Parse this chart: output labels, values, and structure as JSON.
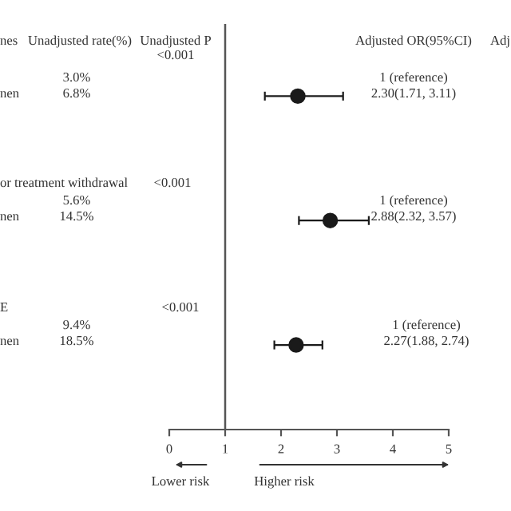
{
  "chart_data": {
    "type": "scatter",
    "orientation": "horizontal",
    "categories": [
      null,
      null,
      null
    ],
    "values": [
      2.3,
      2.88,
      2.27
    ],
    "errors": [
      [
        1.71,
        3.11
      ],
      [
        2.32,
        3.57
      ],
      [
        1.88,
        2.74
      ]
    ],
    "color": "#1a1a1a",
    "marker": "circle",
    "xlim": [
      0,
      5
    ],
    "xticks": [
      0,
      1,
      2,
      3,
      4,
      5
    ],
    "ref_lines": [
      {
        "axis": "x",
        "value": 1,
        "color": "#555555"
      }
    ],
    "grid": false,
    "annotations": [
      "nes",
      "Unadjusted rate(%)",
      "Unadjusted P",
      "<0.001",
      "3.0%",
      "nen",
      "6.8%",
      "or treatment withdrawal",
      "<0.001",
      "5.6%",
      "nen",
      "14.5%",
      "E",
      "<0.001",
      "9.4%",
      "nen",
      "18.5%",
      "Adjusted OR(95%CI)",
      "Adj",
      "1 (reference)",
      "1 (reference)",
      "1 (reference)",
      "Lower risk",
      "Higher risk",
      "2.30(1.71, 3.11)",
      "2.88(2.32, 3.57)",
      "2.27(1.88, 2.74)"
    ]
  }
}
